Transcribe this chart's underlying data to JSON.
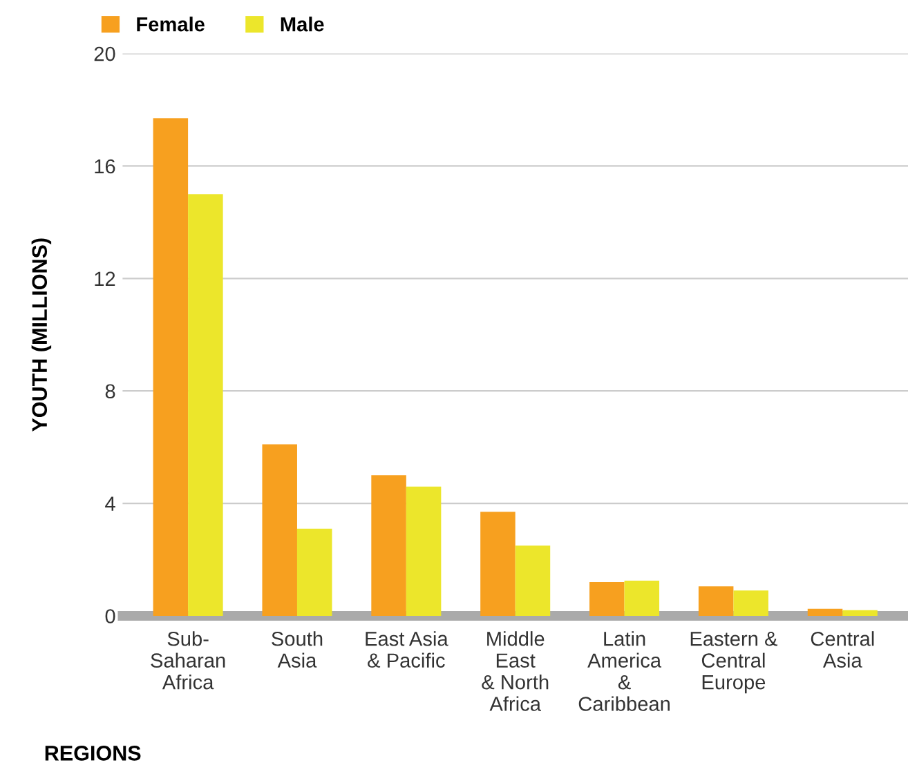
{
  "chart_data": {
    "type": "bar",
    "xlabel": "REGIONS",
    "ylabel": "YOUTH (MILLIONS)",
    "categories": [
      "Sub-\nSaharan\nAfrica",
      "South\nAsia",
      "East Asia\n& Pacific",
      "Middle\nEast\n& North\nAfrica",
      "Latin\nAmerica\n&\nCaribbean",
      "Eastern &\nCentral\nEurope",
      "Central\nAsia"
    ],
    "series": [
      {
        "name": "Female",
        "color": "#f7a01f",
        "values": [
          17.7,
          6.1,
          5.0,
          3.7,
          1.2,
          1.05,
          0.25
        ]
      },
      {
        "name": "Male",
        "color": "#ece62b",
        "values": [
          15.0,
          3.1,
          4.6,
          2.5,
          1.25,
          0.9,
          0.2
        ]
      }
    ],
    "ylim": [
      0,
      20
    ],
    "yticks": [
      0,
      4,
      8,
      12,
      16,
      20
    ],
    "grid": "y",
    "legend": "top left"
  }
}
